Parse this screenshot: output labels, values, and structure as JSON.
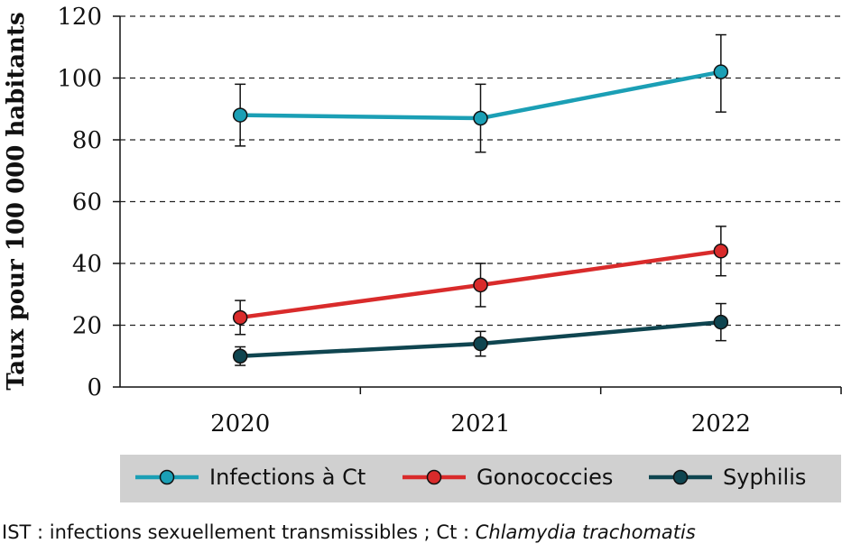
{
  "chart_data": {
    "type": "line",
    "categories": [
      "2020",
      "2021",
      "2022"
    ],
    "series": [
      {
        "name": "Infections à Ct",
        "color": "#1b9fb5",
        "values": [
          88,
          87,
          102
        ],
        "err_low": [
          78,
          76,
          89
        ],
        "err_high": [
          98,
          98,
          114
        ]
      },
      {
        "name": "Gonococcies",
        "color": "#d92b2b",
        "values": [
          22.5,
          33,
          44
        ],
        "err_low": [
          17,
          26,
          36
        ],
        "err_high": [
          28,
          40,
          52
        ]
      },
      {
        "name": "Syphilis",
        "color": "#0f4550",
        "values": [
          10,
          14,
          21
        ],
        "err_low": [
          7,
          10,
          15
        ],
        "err_high": [
          13,
          18,
          27
        ]
      }
    ],
    "ylabel": "Taux pour 100 000 habitants",
    "ylim": [
      0,
      120
    ],
    "yticks": [
      "0",
      "20",
      "40",
      "60",
      "80",
      "100",
      "120"
    ],
    "grid": true,
    "legend_placement": "bottom"
  },
  "footnote": {
    "prefix": "IST : infections sexuellement transmissibles ; Ct : ",
    "italic": "Chlamydia trachomatis"
  }
}
